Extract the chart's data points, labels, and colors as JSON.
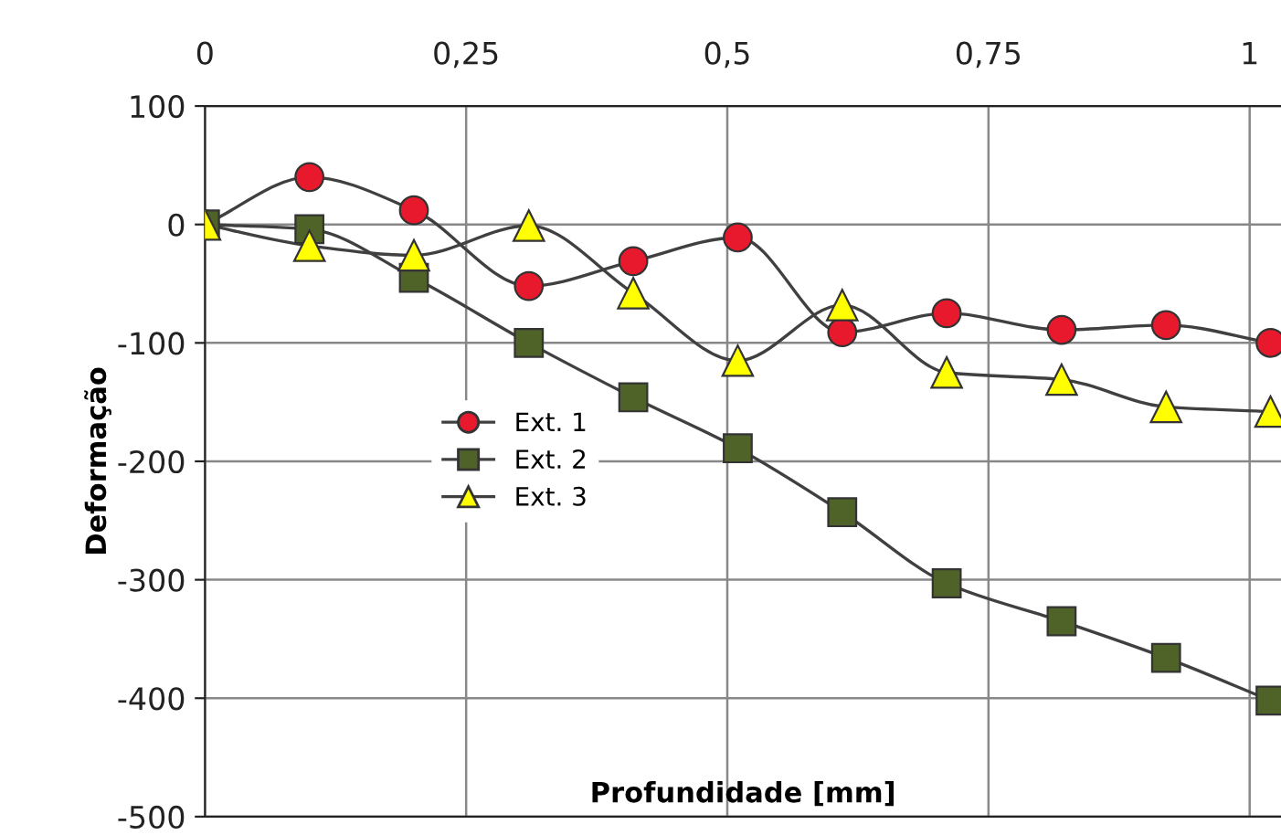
{
  "chart_data": {
    "type": "line",
    "xlabel": "Profundidade [mm]",
    "ylabel": "Deformação",
    "x": [
      0,
      0.1,
      0.2,
      0.31,
      0.41,
      0.51,
      0.61,
      0.71,
      0.82,
      0.92,
      1.02
    ],
    "series": [
      {
        "name": "Ext. 1",
        "color": "#e8192c",
        "marker": "circle",
        "values": [
          0,
          40,
          12,
          -52,
          -31,
          -11,
          -91,
          -75,
          -89,
          -85,
          -100
        ]
      },
      {
        "name": "Ext. 2",
        "color": "#4f6228",
        "marker": "square",
        "values": [
          0,
          -4,
          -45,
          -100,
          -146,
          -189,
          -243,
          -303,
          -335,
          -366,
          -402
        ]
      },
      {
        "name": "Ext. 3",
        "color": "#ffff00",
        "marker": "triangle",
        "values": [
          0,
          -18,
          -26,
          -1,
          -58,
          -115,
          -68,
          -125,
          -131,
          -154,
          -158
        ]
      }
    ],
    "xlim": [
      0,
      1.03
    ],
    "xticks": [
      0,
      {
        "value": 0.25,
        "label": "0,25"
      },
      {
        "value": 0.5,
        "label": "0,5"
      },
      {
        "value": 0.75,
        "label": "0,75"
      },
      1
    ],
    "ylim": [
      -500,
      100
    ],
    "yticks": [
      100,
      0,
      -100,
      -200,
      -300,
      -400,
      -500
    ],
    "grid": true,
    "legend": "center left",
    "line_style": "solid"
  }
}
